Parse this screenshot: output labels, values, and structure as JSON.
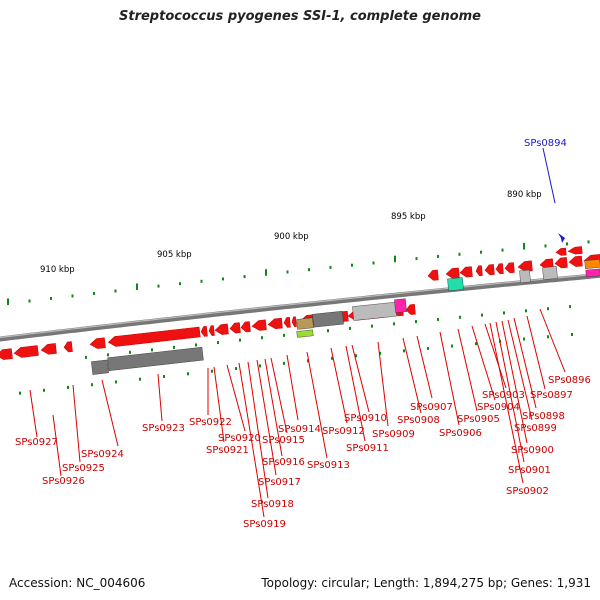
{
  "title": "Streptococcus pyogenes SSI-1, complete genome",
  "footer": {
    "accession": "Accession: NC_004606",
    "topology": "Topology: circular; Length: 1,894,275 bp; Genes: 1,931"
  },
  "colors": {
    "gene": "#ee1111",
    "backbone": "#777777",
    "tick": "#118811",
    "highlight": "#1a1acc",
    "rna_gray": "#777777",
    "rna_light": "#bbbbbb",
    "rna_olive": "#b59a5a",
    "rna_green": "#99dd33",
    "rna_magenta": "#ff22aa",
    "rna_teal": "#22ddaa",
    "rna_orange": "#ff8800"
  },
  "kbp_labels": [
    "910 kbp",
    "905 kbp",
    "900 kbp",
    "895 kbp",
    "890 kbp"
  ],
  "highlight_gene": "SPs0894",
  "gene_labels": [
    "SPs0927",
    "SPs0926",
    "SPs0925",
    "SPs0924",
    "SPs0923",
    "SPs0922",
    "SPs0921",
    "SPs0920",
    "SPs0919",
    "SPs0918",
    "SPs0917",
    "SPs0916",
    "SPs0915",
    "SPs0914",
    "SPs0913",
    "SPs0912",
    "SPs0911",
    "SPs0910",
    "SPs0909",
    "SPs0908",
    "SPs0907",
    "SPs0906",
    "SPs0905",
    "SPs0904",
    "SPs0903",
    "SPs0902",
    "SPs0901",
    "SPs0900",
    "SPs0899",
    "SPs0898",
    "SPs0897",
    "SPs0896"
  ]
}
